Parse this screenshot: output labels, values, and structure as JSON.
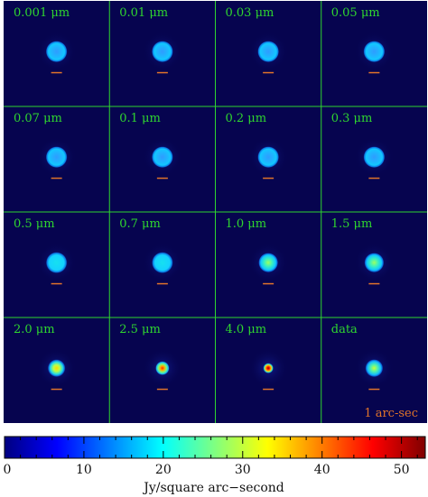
{
  "figure": {
    "panels": [
      {
        "label": "0.001 μm",
        "disk": "ring"
      },
      {
        "label": "0.01 μm",
        "disk": "ring"
      },
      {
        "label": "0.03 μm",
        "disk": "ring"
      },
      {
        "label": "0.05 μm",
        "disk": "ring"
      },
      {
        "label": "0.07 μm",
        "disk": "ring"
      },
      {
        "label": "0.1 μm",
        "disk": "ring"
      },
      {
        "label": "0.2 μm",
        "disk": "ring"
      },
      {
        "label": "0.3 μm",
        "disk": "ring"
      },
      {
        "label": "0.5 μm",
        "disk": "flat"
      },
      {
        "label": "0.7 μm",
        "disk": "flat"
      },
      {
        "label": "1.0 μm",
        "disk": "peak-low"
      },
      {
        "label": "1.5 μm",
        "disk": "peak-low"
      },
      {
        "label": "2.0 μm",
        "disk": "peak-mid"
      },
      {
        "label": "2.5 μm",
        "disk": "peak-high"
      },
      {
        "label": "4.0 μm",
        "disk": "peak-max"
      },
      {
        "label": "data",
        "disk": "data"
      }
    ],
    "scale_bar_label": "1 arc-sec",
    "colors": {
      "background": "#06044f",
      "grid_line": "#2fd52f",
      "label_text": "#2fd52f",
      "scale_bar": "#e0742a"
    }
  },
  "colorbar": {
    "min": 0,
    "max": 53,
    "tick_labels": [
      "0",
      "10",
      "20",
      "30",
      "40",
      "50"
    ],
    "tick_values": [
      0,
      10,
      20,
      30,
      40,
      50
    ],
    "minor_step": 2,
    "title": "Jy/square arc−second",
    "colormap": [
      "#000080",
      "#0000ff",
      "#0080ff",
      "#00ffff",
      "#80ff80",
      "#ffff00",
      "#ff8000",
      "#ff0000",
      "#800000"
    ]
  }
}
